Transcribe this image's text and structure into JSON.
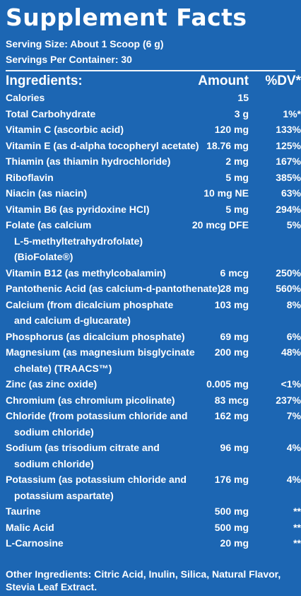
{
  "title": "Supplement Facts",
  "serving_size": "Serving Size: About 1 Scoop (6 g)",
  "servings_per_container": "Servings Per Container: 30",
  "header": {
    "ingredients": "Ingredients:",
    "amount": "Amount",
    "dv": "%DV*"
  },
  "rows": [
    {
      "name": [
        "Calories"
      ],
      "amount": "15",
      "dv": ""
    },
    {
      "name": [
        "Total Carbohydrate"
      ],
      "amount": "3 g",
      "dv": "1%*"
    },
    {
      "name": [
        "Vitamin C (ascorbic acid)"
      ],
      "amount": "120 mg",
      "dv": "133%"
    },
    {
      "name": [
        "Vitamin E (as d-alpha tocopheryl acetate)"
      ],
      "amount": "18.76 mg",
      "dv": "125%"
    },
    {
      "name": [
        "Thiamin (as thiamin hydrochloride)"
      ],
      "amount": "2 mg",
      "dv": "167%"
    },
    {
      "name": [
        "Riboflavin"
      ],
      "amount": "5 mg",
      "dv": "385%"
    },
    {
      "name": [
        "Niacin (as niacin)"
      ],
      "amount": "10 mg NE",
      "dv": "63%"
    },
    {
      "name": [
        "Vitamin B6 (as pyridoxine HCl)"
      ],
      "amount": "5 mg",
      "dv": "294%"
    },
    {
      "name": [
        "Folate (as calcium",
        "L-5-methyltetrahydrofolate)",
        "(BioFolate®)"
      ],
      "amount": "20 mcg DFE",
      "dv": "5%"
    },
    {
      "name": [
        "Vitamin B12 (as methylcobalamin)"
      ],
      "amount": "6 mcg",
      "dv": "250%"
    },
    {
      "name": [
        "Pantothenic Acid (as calcium-d-pantothenate)"
      ],
      "amount": "28 mg",
      "dv": "560%"
    },
    {
      "name": [
        "Calcium (from dicalcium phosphate",
        "and calcium d-glucarate)"
      ],
      "amount": "103 mg",
      "dv": "8%"
    },
    {
      "name": [
        "Phosphorus (as dicalcium phosphate)"
      ],
      "amount": "69 mg",
      "dv": "6%"
    },
    {
      "name": [
        "Magnesium (as magnesium bisglycinate",
        "chelate) (TRAACS™)"
      ],
      "amount": "200 mg",
      "dv": "48%"
    },
    {
      "name": [
        "Zinc (as zinc oxide)"
      ],
      "amount": "0.005 mg",
      "dv": "<1%"
    },
    {
      "name": [
        "Chromium (as chromium picolinate)"
      ],
      "amount": "83 mcg",
      "dv": "237%"
    },
    {
      "name": [
        "Chloride (from potassium chloride and",
        "sodium chloride)"
      ],
      "amount": "162 mg",
      "dv": "7%"
    },
    {
      "name": [
        "Sodium (as trisodium citrate and",
        "sodium chloride)"
      ],
      "amount": "96 mg",
      "dv": "4%"
    },
    {
      "name": [
        "Potassium (as potassium chloride and",
        "potassium aspartate)"
      ],
      "amount": "176 mg",
      "dv": "4%"
    },
    {
      "name": [
        "Taurine"
      ],
      "amount": "500 mg",
      "dv": "**"
    },
    {
      "name": [
        "Malic Acid"
      ],
      "amount": "500 mg",
      "dv": "**"
    },
    {
      "name": [
        "L-Carnosine"
      ],
      "amount": "20 mg",
      "dv": "**"
    }
  ],
  "other_ingredients": "Other Ingredients: Citric Acid, Inulin, Silica, Natural Flavor, Stevia Leaf Extract.",
  "colors": {
    "background": "#1c66b3",
    "text": "#ffffff"
  }
}
